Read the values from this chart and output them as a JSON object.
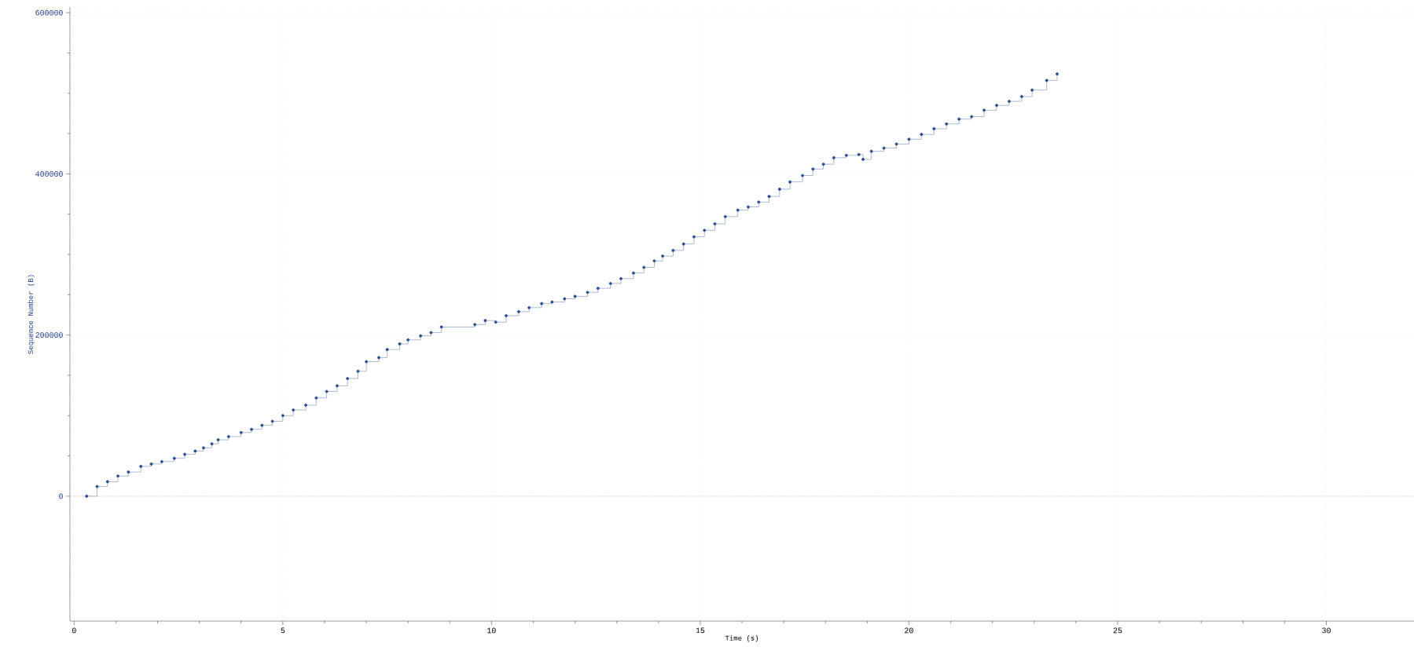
{
  "chart_data": {
    "type": "step",
    "xlabel": "Time (s)",
    "ylabel": "Sequence Number (B)",
    "x": [
      0.3,
      0.55,
      0.8,
      1.05,
      1.3,
      1.6,
      1.85,
      2.1,
      2.4,
      2.65,
      2.9,
      3.1,
      3.3,
      3.45,
      3.7,
      4.0,
      4.25,
      4.5,
      4.75,
      5.0,
      5.25,
      5.55,
      5.8,
      6.05,
      6.3,
      6.55,
      6.8,
      7.0,
      7.3,
      7.5,
      7.8,
      8.0,
      8.3,
      8.55,
      8.8,
      9.6,
      9.85,
      10.1,
      10.35,
      10.65,
      10.9,
      11.2,
      11.45,
      11.75,
      12.0,
      12.3,
      12.55,
      12.85,
      13.1,
      13.4,
      13.65,
      13.9,
      14.1,
      14.35,
      14.6,
      14.85,
      15.1,
      15.35,
      15.6,
      15.9,
      16.15,
      16.4,
      16.65,
      16.9,
      17.15,
      17.45,
      17.7,
      17.95,
      18.2,
      18.5,
      18.8,
      18.9,
      19.1,
      19.4,
      19.7,
      20.0,
      20.3,
      20.6,
      20.9,
      21.2,
      21.5,
      21.8,
      22.1,
      22.4,
      22.7,
      22.95,
      23.3,
      23.55
    ],
    "series": [
      {
        "color": "#2a4b8d",
        "values": [
          0,
          12000,
          18000,
          25000,
          30000,
          37000,
          40000,
          43000,
          47000,
          52000,
          56000,
          60000,
          65000,
          70000,
          74000,
          79000,
          83000,
          88000,
          93000,
          100000,
          107000,
          113000,
          122000,
          130000,
          137000,
          146000,
          155000,
          167000,
          172000,
          182000,
          189000,
          194000,
          199000,
          203000,
          210000,
          213000,
          218000,
          216000,
          224000,
          229000,
          234000,
          239000,
          241000,
          245000,
          248000,
          253000,
          258000,
          264000,
          270000,
          277000,
          284000,
          292000,
          298000,
          305000,
          313000,
          322000,
          330000,
          338000,
          347000,
          355000,
          359000,
          365000,
          372000,
          381000,
          390000,
          398000,
          406000,
          412000,
          420000,
          423000,
          424000,
          418000,
          428000,
          432000,
          437000,
          443000,
          449000,
          456000,
          462000,
          468000,
          471000,
          479000,
          485000,
          490000,
          496000,
          504000,
          516000,
          524000
        ]
      }
    ],
    "xlim": [
      -0.1,
      32.1
    ],
    "ylim": [
      -155000,
      607000
    ],
    "xticks": [
      0,
      5,
      10,
      15,
      20,
      25,
      30
    ],
    "yticks": [
      0,
      200000,
      400000,
      600000
    ],
    "grid": true,
    "marker": "circle",
    "line_style": "solid",
    "ref_lines": [
      {
        "axis": "y",
        "value": 0,
        "color": "#c8c8c8"
      }
    ]
  }
}
